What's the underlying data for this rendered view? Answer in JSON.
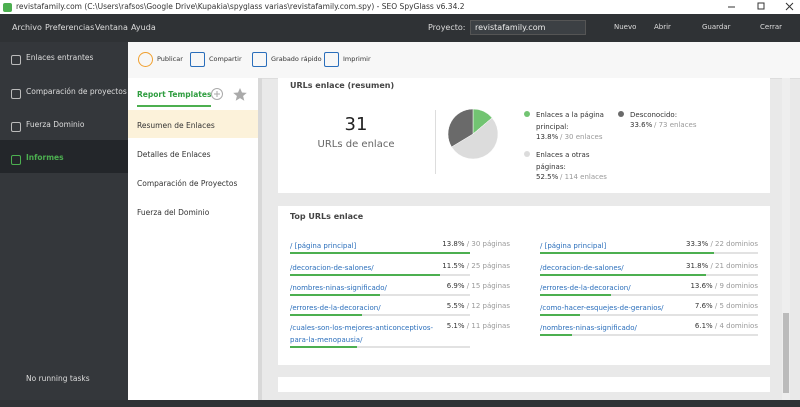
{
  "window": {
    "title": "revistafamily.com (C:\\Users\\rafsos\\Google Drive\\Kupakia\\spyglass varias\\revistafamily.com.spy) - SEO SpyGlass v6.34.2"
  },
  "menu": [
    "Archivo",
    "Preferencias",
    "Ventana",
    "Ayuda"
  ],
  "project": {
    "label": "Proyecto:",
    "value": "revistafamily.com"
  },
  "actions": [
    "Nuevo",
    "Abrir",
    "Guardar",
    "Cerrar"
  ],
  "sidebar": {
    "items": [
      "Enlaces entrantes",
      "Comparación de proyectos",
      "Fuerza Dominio",
      "Informes"
    ],
    "status": "No running tasks"
  },
  "toolbar": [
    "Publicar",
    "Compartir",
    "Grabado rápido",
    "Imprimir"
  ],
  "templates": {
    "tab": "Report Templates",
    "items": [
      "Resumen de Enlaces",
      "Detalles de Enlaces",
      "Comparación de Proyectos",
      "Fuerza del Dominio"
    ]
  },
  "summary": {
    "title": "URLs enlace (resumen)",
    "total": 31,
    "total_label": "URLs de enlace",
    "slices": [
      {
        "name": "Enlaces a la página principal:",
        "color": "#72c472",
        "value": 13.8,
        "label": "13.8%",
        "count": "/ 30 enlaces"
      },
      {
        "name": "Enlaces a otras páginas:",
        "color": "#dcdcdc",
        "value": 52.5,
        "label": "52.5%",
        "count": "/ 114 enlaces"
      },
      {
        "name": "Desconocido:",
        "color": "#6a6a6a",
        "value": 33.6,
        "label": "33.6%",
        "count": "/ 73 enlaces"
      }
    ]
  },
  "top": {
    "title": "Top URLs enlace",
    "columns": [
      {
        "rows": [
          {
            "url": "/ [página principal]",
            "value": 13.8,
            "label": "13.8%",
            "count": "/ 30 páginas"
          },
          {
            "url": "/decoracion-de-salones/",
            "value": 11.5,
            "label": "11.5%",
            "count": "/ 25 páginas"
          },
          {
            "url": "/nombres-ninas-significado/",
            "value": 6.9,
            "label": "6.9%",
            "count": "/ 15 páginas"
          },
          {
            "url": "/errores-de-la-decoracion/",
            "value": 5.5,
            "label": "5.5%",
            "count": "/ 12 páginas"
          },
          {
            "url": "/cuales-son-los-mejores-anticonceptivos-para-la-menopausia/",
            "value": 5.1,
            "label": "5.1%",
            "count": "/ 11 páginas"
          }
        ]
      },
      {
        "rows": [
          {
            "url": "/ [página principal]",
            "value": 33.3,
            "label": "33.3%",
            "count": "/ 22 dominios"
          },
          {
            "url": "/decoracion-de-salones/",
            "value": 31.8,
            "label": "31.8%",
            "count": "/ 21 dominios"
          },
          {
            "url": "/errores-de-la-decoracion/",
            "value": 13.6,
            "label": "13.6%",
            "count": "/ 9 dominios"
          },
          {
            "url": "/como-hacer-esquejes-de-geranios/",
            "value": 7.6,
            "label": "7.6%",
            "count": "/ 5 dominios"
          },
          {
            "url": "/nombres-ninas-significado/",
            "value": 6.1,
            "label": "6.1%",
            "count": "/ 4 dominios"
          }
        ]
      }
    ]
  }
}
